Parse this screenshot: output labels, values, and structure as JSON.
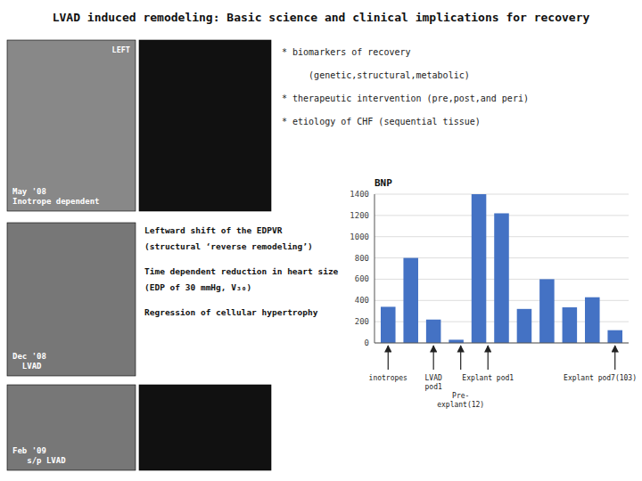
{
  "chart_data": {
    "type": "bar",
    "title": "BNP",
    "categories": [
      null,
      null,
      null,
      null,
      null,
      null,
      null,
      null,
      null,
      null,
      null
    ],
    "values": [
      340,
      800,
      220,
      30,
      1400,
      1220,
      320,
      600,
      335,
      430,
      120
    ],
    "color": "#4472C4",
    "ylim": [
      0,
      1400
    ],
    "yticks": [
      0,
      200,
      400,
      600,
      800,
      1000,
      1200,
      1400
    ],
    "grid": true,
    "tick_labels": "y",
    "annotations": [
      {
        "text": "LVAD induced remodeling: Basic science and clinical implications for recovery"
      },
      {
        "text": "* biomarkers of recovery"
      },
      {
        "text": "     (genetic,structural,metabolic)"
      },
      {
        "text": "* therapeutic intervention (pre,post,and peri)"
      },
      {
        "text": "* etiology of CHF (sequential tissue)"
      },
      {
        "text": "Leftward shift of the EDPVR"
      },
      {
        "text": "(structural ‘reverse remodeling’)"
      },
      {
        "text": "Time dependent reduction in heart size"
      },
      {
        "text": "(EDP of 30 mmHg, V₃₀)"
      },
      {
        "text": "Regression of cellular hypertrophy"
      },
      {
        "text": "May '08\nInotrope dependent"
      },
      {
        "text": "LEFT"
      },
      {
        "text": "Dec '08\n  LVAD"
      },
      {
        "text": "Feb '09\n   s/p LVAD"
      },
      {
        "text": "inotropes",
        "x": 0
      },
      {
        "text": "LVAD\npod1",
        "x": 2
      },
      {
        "text": "Pre-\nexplant(12)",
        "x": 3.2
      },
      {
        "text": "Explant pod1",
        "x": 4.4
      },
      {
        "text": "Explant pod7(103)",
        "x": 10
      }
    ]
  }
}
